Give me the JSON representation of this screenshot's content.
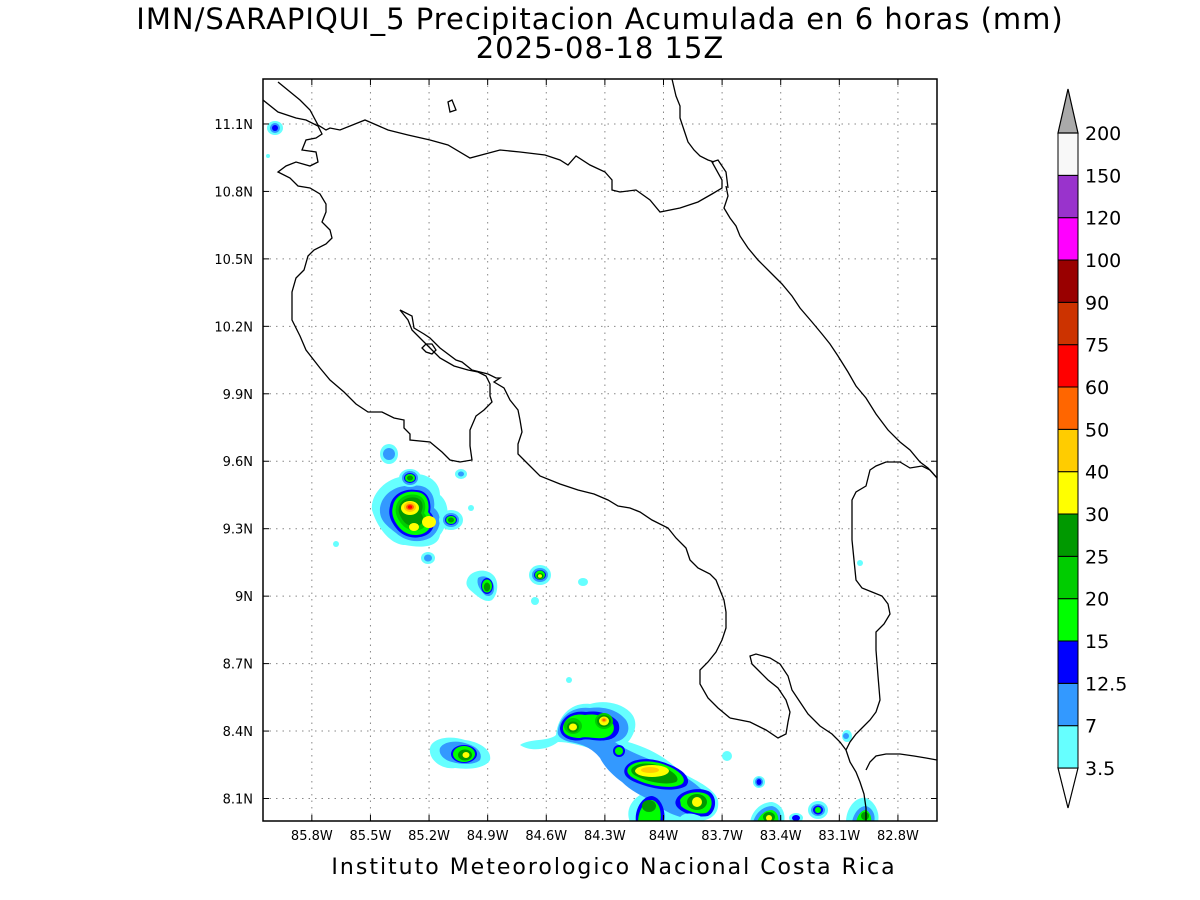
{
  "title": {
    "line1": "IMN/SARAPIQUI_5 Precipitacion Acumulada en 6 horas (mm)",
    "line2": "2025-08-18 15Z"
  },
  "credit": "Instituto Meteorologico Nacional Costa Rica",
  "map": {
    "lon_range": [
      -86.05,
      -82.6
    ],
    "lat_range": [
      8.0,
      11.3
    ],
    "lon_ticks": [
      {
        "value": -85.8,
        "label": "85.8W"
      },
      {
        "value": -85.5,
        "label": "85.5W"
      },
      {
        "value": -85.2,
        "label": "85.2W"
      },
      {
        "value": -84.9,
        "label": "84.9W"
      },
      {
        "value": -84.6,
        "label": "84.6W"
      },
      {
        "value": -84.3,
        "label": "84.3W"
      },
      {
        "value": -84.0,
        "label": "84W"
      },
      {
        "value": -83.7,
        "label": "83.7W"
      },
      {
        "value": -83.4,
        "label": "83.4W"
      },
      {
        "value": -83.1,
        "label": "83.1W"
      },
      {
        "value": -82.8,
        "label": "82.8W"
      }
    ],
    "lat_ticks": [
      {
        "value": 8.1,
        "label": "8.1N"
      },
      {
        "value": 8.4,
        "label": "8.4N"
      },
      {
        "value": 8.7,
        "label": "8.7N"
      },
      {
        "value": 9.0,
        "label": "9N"
      },
      {
        "value": 9.3,
        "label": "9.3N"
      },
      {
        "value": 9.6,
        "label": "9.6N"
      },
      {
        "value": 9.9,
        "label": "9.9N"
      },
      {
        "value": 10.2,
        "label": "10.2N"
      },
      {
        "value": 10.5,
        "label": "10.5N"
      },
      {
        "value": 10.8,
        "label": "10.8N"
      },
      {
        "value": 11.1,
        "label": "11.1N"
      }
    ],
    "grid": true
  },
  "colorbar": {
    "levels": [
      {
        "label": "3.5",
        "color": "#66ffff"
      },
      {
        "label": "7",
        "color": "#3399ff"
      },
      {
        "label": "12.5",
        "color": "#0000ff"
      },
      {
        "label": "15",
        "color": "#00ff00"
      },
      {
        "label": "20",
        "color": "#00cc00"
      },
      {
        "label": "25",
        "color": "#009900"
      },
      {
        "label": "30",
        "color": "#ffff00"
      },
      {
        "label": "40",
        "color": "#ffcc00"
      },
      {
        "label": "50",
        "color": "#ff6600"
      },
      {
        "label": "60",
        "color": "#ff0000"
      },
      {
        "label": "75",
        "color": "#cc3300"
      },
      {
        "label": "90",
        "color": "#990000"
      },
      {
        "label": "100",
        "color": "#ff00ff"
      },
      {
        "label": "120",
        "color": "#9933cc"
      },
      {
        "label": "150",
        "color": "#f8f8f8"
      },
      {
        "label": "200",
        "color": "#aaaaaa"
      }
    ]
  },
  "precip_cells": [
    {
      "lon": -85.23,
      "lat": 9.4,
      "max_mm": 60
    },
    {
      "lon": -85.14,
      "lat": 9.33,
      "max_mm": 30
    },
    {
      "lon": -85.22,
      "lat": 9.52,
      "max_mm": 25
    },
    {
      "lon": -85.29,
      "lat": 9.63,
      "max_mm": 7
    },
    {
      "lon": -85.03,
      "lat": 9.34,
      "max_mm": 25
    },
    {
      "lon": -84.85,
      "lat": 9.06,
      "max_mm": 25
    },
    {
      "lon": -84.58,
      "lat": 9.09,
      "max_mm": 30
    },
    {
      "lon": -84.98,
      "lat": 8.31,
      "max_mm": 30
    },
    {
      "lon": -84.4,
      "lat": 8.41,
      "max_mm": 30
    },
    {
      "lon": -84.25,
      "lat": 8.43,
      "max_mm": 60
    },
    {
      "lon": -83.97,
      "lat": 8.24,
      "max_mm": 40
    },
    {
      "lon": -83.72,
      "lat": 8.09,
      "max_mm": 30
    },
    {
      "lon": -84.0,
      "lat": 8.07,
      "max_mm": 25
    },
    {
      "lon": -83.4,
      "lat": 8.04,
      "max_mm": 30
    },
    {
      "lon": -83.12,
      "lat": 8.05,
      "max_mm": 15
    },
    {
      "lon": -82.85,
      "lat": 8.05,
      "max_mm": 25
    },
    {
      "lon": -86.0,
      "lat": 11.08,
      "max_mm": 12.5
    }
  ]
}
